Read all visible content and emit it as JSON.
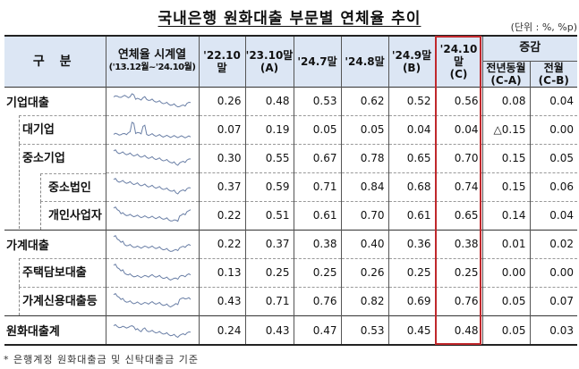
{
  "title": "국내은행 원화대출 부문별 연체율 추이",
  "unit": "(단위 : %, %p)",
  "header": {
    "category": "구  분",
    "series_label": "연체율 시계열",
    "series_range": "('13.12월~'24.10월)",
    "cols": [
      {
        "label": "'22.10말",
        "sub": ""
      },
      {
        "label": "'23.10말",
        "sub": "(A)"
      },
      {
        "label": "'24.7말",
        "sub": ""
      },
      {
        "label": "'24.8말",
        "sub": ""
      },
      {
        "label": "'24.9말",
        "sub": "(B)"
      },
      {
        "label": "'24.10말",
        "sub": "(C)"
      }
    ],
    "change_group": "증감",
    "change_cols": [
      {
        "label": "전년동월",
        "sub": "(C-A)"
      },
      {
        "label": "전월",
        "sub": "(C-B)"
      }
    ]
  },
  "rows": [
    {
      "name": "기업대출",
      "level": 0,
      "values": [
        "0.26",
        "0.48",
        "0.53",
        "0.62",
        "0.52",
        "0.56"
      ],
      "yoy": "0.08",
      "mom": "0.04"
    },
    {
      "name": "대기업",
      "level": 1,
      "values": [
        "0.07",
        "0.19",
        "0.05",
        "0.05",
        "0.04",
        "0.04"
      ],
      "yoy": "△0.15",
      "mom": "0.00"
    },
    {
      "name": "중소기업",
      "level": 1,
      "values": [
        "0.30",
        "0.55",
        "0.67",
        "0.78",
        "0.65",
        "0.70"
      ],
      "yoy": "0.15",
      "mom": "0.05"
    },
    {
      "name": "중소법인",
      "level": 2,
      "values": [
        "0.37",
        "0.59",
        "0.71",
        "0.84",
        "0.68",
        "0.74"
      ],
      "yoy": "0.15",
      "mom": "0.06"
    },
    {
      "name": "개인사업자",
      "level": 2,
      "values": [
        "0.22",
        "0.51",
        "0.61",
        "0.70",
        "0.61",
        "0.65"
      ],
      "yoy": "0.14",
      "mom": "0.04"
    },
    {
      "name": "가계대출",
      "level": 0,
      "values": [
        "0.22",
        "0.37",
        "0.38",
        "0.40",
        "0.36",
        "0.38"
      ],
      "yoy": "0.01",
      "mom": "0.02"
    },
    {
      "name": "주택담보대출",
      "level": 1,
      "values": [
        "0.13",
        "0.25",
        "0.25",
        "0.26",
        "0.25",
        "0.25"
      ],
      "yoy": "0.00",
      "mom": "0.00"
    },
    {
      "name": "가계신용대출등",
      "level": 1,
      "values": [
        "0.43",
        "0.71",
        "0.76",
        "0.82",
        "0.69",
        "0.76"
      ],
      "yoy": "0.05",
      "mom": "0.07"
    },
    {
      "name": "원화대출계",
      "level": 0,
      "values": [
        "0.24",
        "0.43",
        "0.47",
        "0.53",
        "0.45",
        "0.48"
      ],
      "yoy": "0.05",
      "mom": "0.03"
    }
  ],
  "sparkline_color": "#6a7fa6",
  "highlight_color": "#c0282c",
  "footnote": "* 은행계정 원화대출금 및 신탁대출금 기준"
}
